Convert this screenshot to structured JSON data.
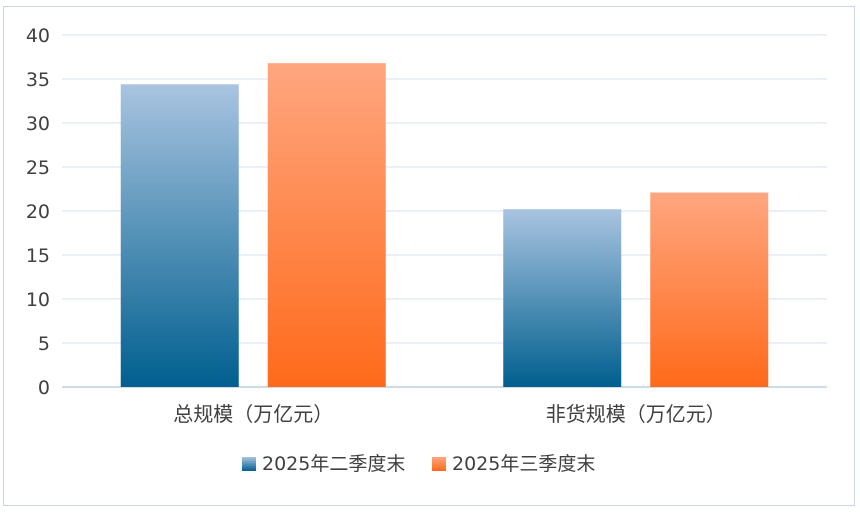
{
  "chart_data": {
    "type": "bar",
    "categories": [
      "总规模（万亿元）",
      "非货规模（万亿元）"
    ],
    "series": [
      {
        "name": "2025年二季度末",
        "values": [
          34.4,
          20.2
        ]
      },
      {
        "name": "2025年三季度末",
        "values": [
          36.8,
          22.1
        ]
      }
    ],
    "yticks": [
      "0",
      "5",
      "10",
      "15",
      "20",
      "25",
      "30",
      "35",
      "40"
    ],
    "ylim": [
      0,
      40
    ],
    "grid": true,
    "legend_position": "bottom"
  },
  "colors": {
    "series1_top": "#a9c4e0",
    "series1_bottom": "#005f8f",
    "series2_top": "#ffa680",
    "series2_bottom": "#ff6a1a",
    "grid": "#d6e2ee",
    "axis": "#bfcfdf",
    "text": "#404040"
  }
}
